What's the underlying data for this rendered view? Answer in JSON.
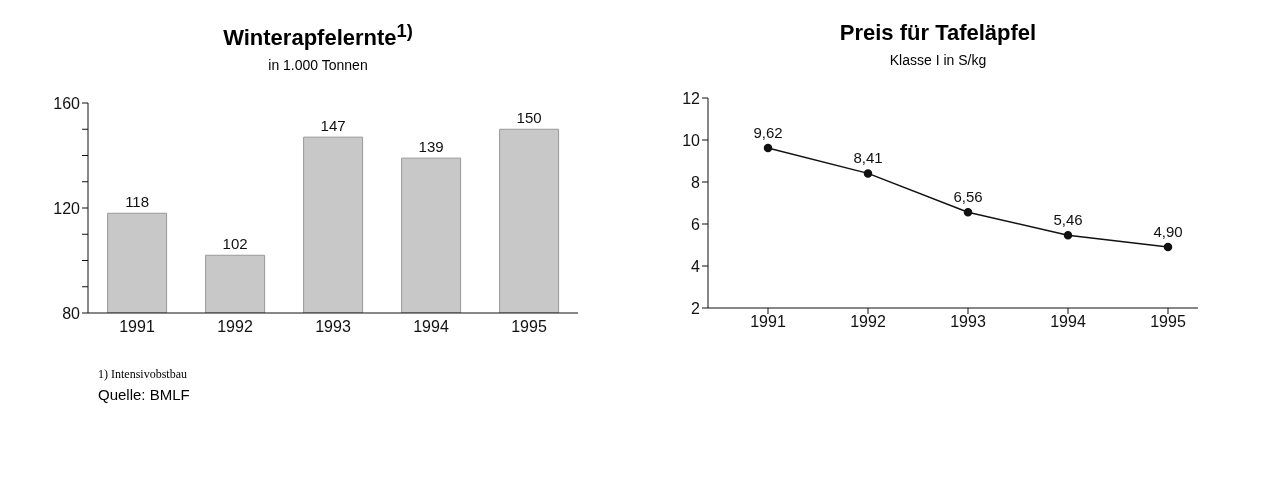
{
  "chart_data": [
    {
      "type": "bar",
      "title": "Winterapfelernte$^{1)}$",
      "subtitle": "in 1.000 Tonnen",
      "categories": [
        "1991",
        "1992",
        "1993",
        "1994",
        "1995"
      ],
      "values": [
        118,
        102,
        147,
        139,
        150
      ],
      "color": "#c8c8c8",
      "ylim": [
        80,
        160
      ],
      "yticks": [
        80,
        {
          "value": 90,
          "label": null
        },
        {
          "value": 100,
          "label": null
        },
        {
          "value": 110,
          "label": null
        },
        120,
        {
          "value": 130,
          "label": null
        },
        {
          "value": 140,
          "label": null
        },
        {
          "value": 150,
          "label": null
        },
        160
      ],
      "data_labels": true,
      "grid": false,
      "legend": false,
      "annotations": [
        "1) Intensivobstbau",
        "Quelle: BMLF"
      ]
    },
    {
      "type": "line",
      "title": "Preis für Tafeläpfel",
      "subtitle": "Klasse I in S/kg",
      "categories": [
        "1991",
        "1992",
        "1993",
        "1994",
        "1995"
      ],
      "values": [
        9.62,
        8.41,
        6.56,
        5.46,
        4.9
      ],
      "value_labels": [
        "9,62",
        "8,41",
        "6,56",
        "5,46",
        "4,90"
      ],
      "color": "#111111",
      "ylim": [
        2,
        12
      ],
      "yticks": [
        2,
        4,
        6,
        8,
        10,
        12
      ],
      "marker": "circle",
      "line_style": "solid",
      "grid": false,
      "legend": false
    }
  ]
}
